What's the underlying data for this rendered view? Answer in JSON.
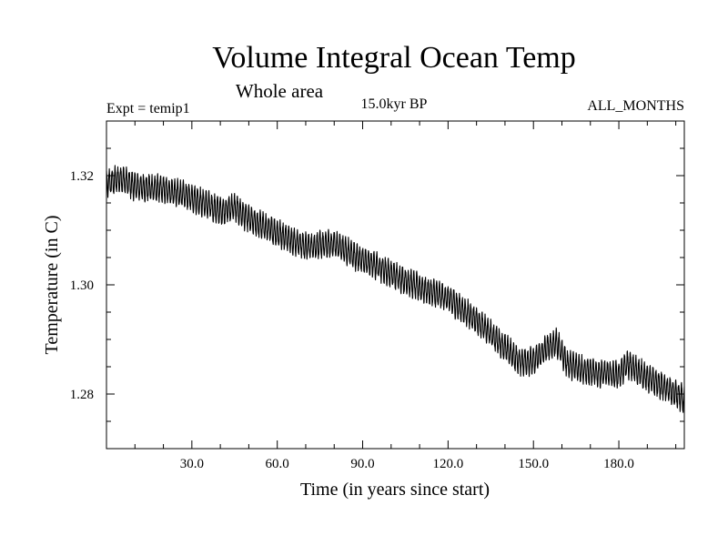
{
  "chart_data": {
    "type": "line",
    "title": "Volume Integral Ocean Temp",
    "subtitle": "Whole area",
    "period_label": "15.0kyr BP",
    "expt_label": "Expt = temip1",
    "months_label": "ALL_MONTHS",
    "xlabel": "Time (in years since start)",
    "ylabel": "Temperature (in C)",
    "xlim": [
      0,
      203
    ],
    "ylim": [
      1.27,
      1.33
    ],
    "x_ticks": [
      {
        "value": 30,
        "label": "30.0"
      },
      {
        "value": 60,
        "label": "60.0"
      },
      {
        "value": 90,
        "label": "90.0"
      },
      {
        "value": 120,
        "label": "120.0"
      },
      {
        "value": 150,
        "label": "150.0"
      },
      {
        "value": 180,
        "label": "180.0"
      }
    ],
    "y_ticks": [
      {
        "value": 1.28,
        "label": "1.28"
      },
      {
        "value": 1.3,
        "label": "1.30"
      },
      {
        "value": 1.32,
        "label": "1.32"
      }
    ],
    "x_minor_step": 10,
    "y_minor_step": 0.005,
    "seasonal_cycle_amplitude": 0.0022,
    "trend": {
      "x": [
        0,
        5,
        10,
        20,
        30,
        40,
        45,
        50,
        60,
        70,
        80,
        85,
        90,
        95,
        100,
        110,
        120,
        130,
        140,
        145,
        150,
        155,
        158,
        162,
        170,
        180,
        183,
        190,
        200,
        203
      ],
      "y": [
        1.3185,
        1.3195,
        1.318,
        1.3175,
        1.316,
        1.3135,
        1.3142,
        1.312,
        1.3095,
        1.307,
        1.3075,
        1.306,
        1.3045,
        1.3035,
        1.302,
        1.2995,
        1.2975,
        1.2935,
        1.2885,
        1.286,
        1.286,
        1.2885,
        1.2895,
        1.2855,
        1.284,
        1.2835,
        1.2855,
        1.283,
        1.28,
        1.279
      ]
    }
  }
}
